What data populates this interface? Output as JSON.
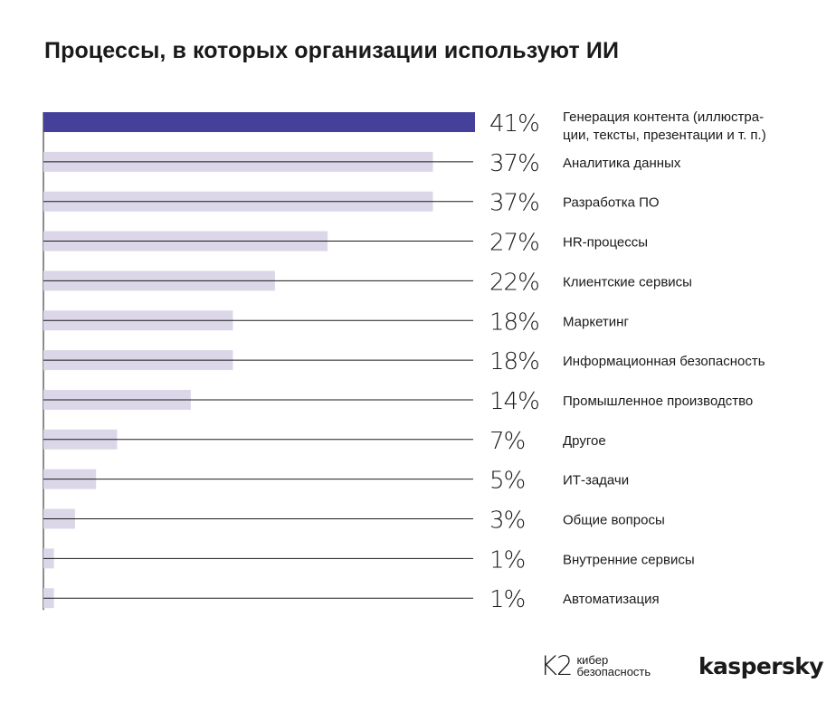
{
  "chart_data": {
    "type": "bar",
    "orientation": "horizontal",
    "title": "Процессы, в которых организации используют ИИ",
    "unit": "%",
    "xlim": [
      0,
      41
    ],
    "highlight_color": "#45409a",
    "bar_color": "#dcd7e8",
    "categories": [
      [
        "Генерация контента (иллюстра-",
        "ции, тексты, презентации и т. п.)"
      ],
      [
        "Аналитика данных"
      ],
      [
        "Разработка ПО"
      ],
      [
        "HR-процессы"
      ],
      [
        "Клиентские сервисы"
      ],
      [
        "Маркетинг"
      ],
      [
        "Информационная безопасность"
      ],
      [
        "Промышленное производство"
      ],
      [
        "Другое"
      ],
      [
        "ИТ-задачи"
      ],
      [
        "Общие вопросы"
      ],
      [
        "Внутренние сервисы"
      ],
      [
        "Автоматизация"
      ]
    ],
    "values": [
      41,
      37,
      37,
      27,
      22,
      18,
      18,
      14,
      7,
      5,
      3,
      1,
      1
    ],
    "value_labels": [
      "41%",
      "37%",
      "37%",
      "27%",
      "22%",
      "18%",
      "18%",
      "14%",
      "7%",
      "5%",
      "3%",
      "1%",
      "1%"
    ],
    "highlighted_index": 0
  },
  "logos": {
    "k2_mark": "K2",
    "k2_line1": "кибер",
    "k2_line2": "безопасность",
    "kaspersky": "kaspersky"
  }
}
